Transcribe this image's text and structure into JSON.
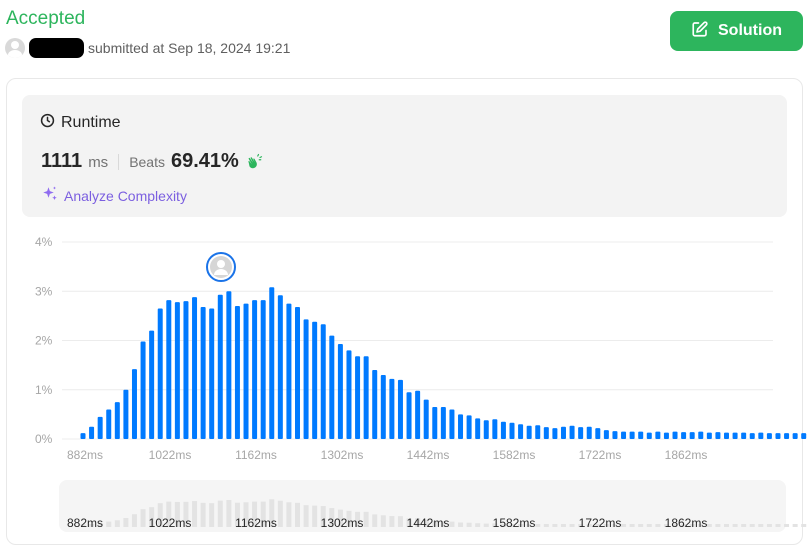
{
  "header": {
    "status": "Accepted",
    "submitted_text": "submitted at Sep 18, 2024 19:21",
    "solution_label": "Solution"
  },
  "runtime": {
    "title": "Runtime",
    "value": "1111",
    "unit": "ms",
    "beats_label": "Beats",
    "beats_value": "69.41%",
    "analyze_label": "Analyze Complexity"
  },
  "colors": {
    "accent_green": "#2db55d",
    "bar_blue": "#007aff",
    "mini_bar_gray": "#e3e3e3",
    "analyze_purple": "#7b5fe0"
  },
  "icons": {
    "solution": "edit-icon",
    "runtime": "clock-icon",
    "beats": "clap-icon",
    "analyze": "sparkle-icon",
    "user_marker": "avatar-icon"
  },
  "chart_data": {
    "type": "bar",
    "xlabel": "",
    "ylabel": "",
    "ylim": [
      0,
      4
    ],
    "y_ticks": [
      "0%",
      "1%",
      "2%",
      "3%",
      "4%"
    ],
    "x_ticks": [
      "882ms",
      "1022ms",
      "1162ms",
      "1302ms",
      "1442ms",
      "1582ms",
      "1722ms",
      "1862ms"
    ],
    "x_start_ms": 882,
    "bin_width_ms": 10,
    "user_runtime_ms": 1111,
    "values": [
      0.12,
      0.25,
      0.45,
      0.6,
      0.75,
      1.0,
      1.42,
      1.98,
      2.2,
      2.65,
      2.82,
      2.78,
      2.8,
      2.88,
      2.68,
      2.65,
      2.93,
      3.0,
      2.7,
      2.75,
      2.82,
      2.82,
      3.08,
      2.92,
      2.75,
      2.68,
      2.43,
      2.38,
      2.33,
      2.1,
      1.93,
      1.8,
      1.68,
      1.68,
      1.4,
      1.3,
      1.22,
      1.2,
      0.95,
      0.98,
      0.8,
      0.65,
      0.65,
      0.6,
      0.5,
      0.48,
      0.42,
      0.38,
      0.4,
      0.35,
      0.33,
      0.3,
      0.27,
      0.28,
      0.24,
      0.22,
      0.25,
      0.27,
      0.24,
      0.25,
      0.22,
      0.18,
      0.16,
      0.15,
      0.15,
      0.15,
      0.13,
      0.15,
      0.13,
      0.15,
      0.14,
      0.14,
      0.15,
      0.13,
      0.14,
      0.13,
      0.13,
      0.13,
      0.12,
      0.13,
      0.12,
      0.12,
      0.12,
      0.12,
      0.12
    ]
  }
}
